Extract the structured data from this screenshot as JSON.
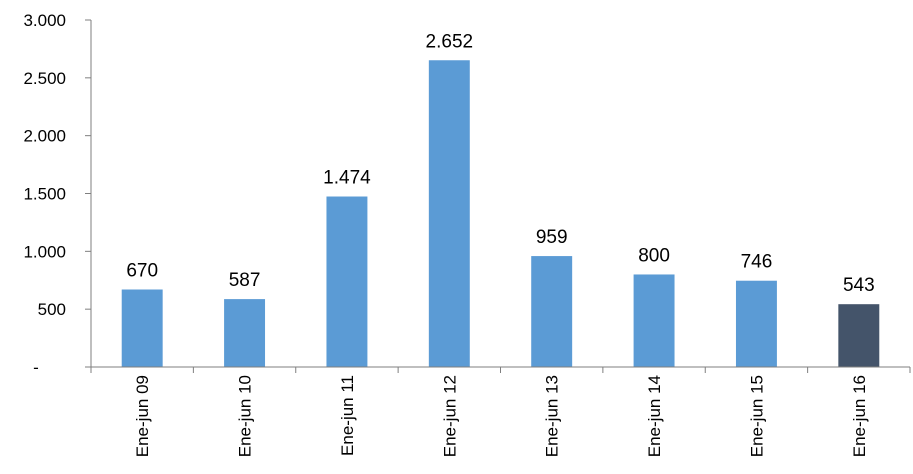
{
  "chart_data": {
    "type": "bar",
    "categories": [
      "Ene-jun 09",
      "Ene-jun 10",
      "Ene-jun 11",
      "Ene-jun 12",
      "Ene-jun 13",
      "Ene-jun 14",
      "Ene-jun 15",
      "Ene-jun 16"
    ],
    "values": [
      670,
      587,
      1474,
      2652,
      959,
      800,
      746,
      543
    ],
    "data_labels": [
      "670",
      "587",
      "1.474",
      "2.652",
      "959",
      "800",
      "746",
      "543"
    ],
    "ylim": [
      0,
      3000
    ],
    "yticks": [
      0,
      500,
      1000,
      1500,
      2000,
      2500,
      3000
    ],
    "ytick_labels": [
      "-",
      "500",
      "1.000",
      "1.500",
      "2.000",
      "2.500",
      "3.000"
    ],
    "grid": false,
    "bar_colors": [
      "#5b9bd5",
      "#5b9bd5",
      "#5b9bd5",
      "#5b9bd5",
      "#5b9bd5",
      "#5b9bd5",
      "#5b9bd5",
      "#44546a"
    ]
  }
}
